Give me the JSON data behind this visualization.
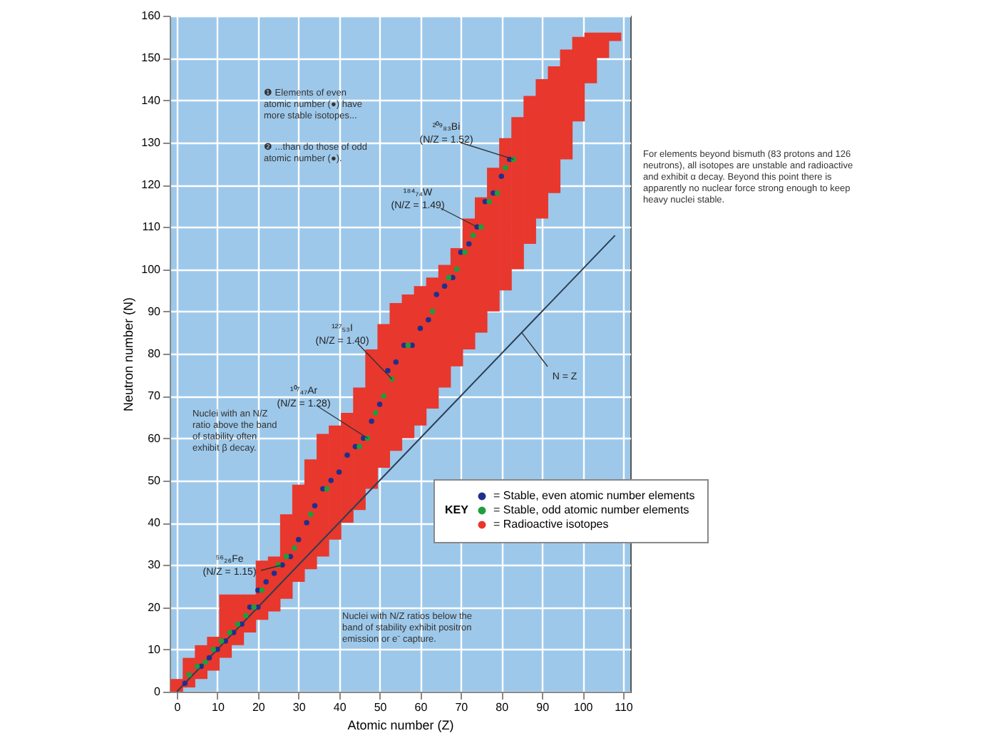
{
  "chart_data": {
    "type": "scatter",
    "xlabel": "Atomic number (Z)",
    "ylabel": "Neutron number (N)",
    "legend_title": "KEY",
    "xlim": [
      0,
      110
    ],
    "xticks": [
      0,
      10,
      20,
      30,
      40,
      50,
      60,
      70,
      80,
      90,
      100,
      110
    ],
    "ylim": [
      0,
      160
    ],
    "yticks": [
      0,
      10,
      20,
      30,
      40,
      50,
      60,
      70,
      80,
      90,
      100,
      110,
      120,
      130,
      140,
      150,
      160
    ],
    "grid": true,
    "legend": "bottom right",
    "marker": "circle",
    "series": [
      {
        "name": "= Stable, even atomic number elements",
        "color": "#1f2f8f",
        "x": [
          2,
          6,
          8,
          10,
          12,
          14,
          16,
          18,
          20,
          20,
          22,
          24,
          26,
          28,
          30,
          32,
          34,
          36,
          38,
          40,
          42,
          44,
          46,
          48,
          50,
          52,
          54,
          56,
          58,
          60,
          62,
          64,
          66,
          68,
          70,
          72,
          74,
          76,
          78,
          80,
          82
        ],
        "values": [
          2,
          6,
          8,
          10,
          12,
          14,
          16,
          20,
          20,
          24,
          26,
          28,
          30,
          32,
          36,
          40,
          44,
          48,
          50,
          52,
          56,
          58,
          60,
          64,
          68,
          76,
          78,
          82,
          82,
          86,
          88,
          94,
          96,
          98,
          104,
          106,
          110,
          116,
          118,
          122,
          126
        ]
      },
      {
        "name": "= Stable, odd atomic number elements",
        "color": "#1e9e3e",
        "x": [
          3,
          5,
          7,
          9,
          11,
          13,
          15,
          17,
          19,
          21,
          25,
          27,
          29,
          33,
          37,
          45,
          47,
          49,
          51,
          53,
          57,
          63,
          67,
          69,
          71,
          73,
          75,
          77,
          79,
          81,
          83
        ],
        "values": [
          4,
          6,
          7,
          10,
          12,
          14,
          16,
          18,
          20,
          24,
          30,
          32,
          34,
          42,
          48,
          58,
          60,
          66,
          70,
          74,
          82,
          90,
          98,
          100,
          104,
          108,
          110,
          116,
          118,
          124,
          126
        ]
      },
      {
        "name": "= Radioactive isotopes",
        "type": "bar",
        "marker": "none",
        "color": "#e8372c",
        "x": [
          0,
          3,
          6,
          9,
          12,
          15,
          18,
          21,
          24,
          27,
          30,
          33,
          36,
          39,
          42,
          45,
          48,
          51,
          54,
          57,
          60,
          63,
          66,
          69,
          72,
          75,
          78,
          81,
          84,
          87,
          90,
          93,
          96,
          99,
          102,
          105,
          108
        ],
        "base": [
          0,
          1,
          3,
          5,
          8,
          11,
          14,
          17,
          19,
          22,
          26,
          29,
          32,
          36,
          40,
          43,
          48,
          53,
          57,
          60,
          63,
          67,
          72,
          77,
          81,
          85,
          90,
          95,
          100,
          106,
          112,
          118,
          126,
          135,
          144,
          150,
          154
        ],
        "values": [
          3,
          7,
          8,
          8,
          15,
          12,
          9,
          14,
          13,
          20,
          23,
          26,
          29,
          27,
          26,
          29,
          33,
          34,
          35,
          34,
          33,
          31,
          29,
          28,
          31,
          32,
          34,
          36,
          36,
          35,
          33,
          30,
          26,
          20,
          12,
          6,
          2
        ]
      },
      {
        "type": "line",
        "marker": "none",
        "color": "#2a3f55",
        "x": [
          0,
          108
        ],
        "values": [
          0,
          108
        ]
      }
    ],
    "annotations": [
      "❶ Elements of even\natomic number (●) have\nmore stable isotopes...",
      "❷ ...than do those of odd\natomic number (●).",
      "For elements beyond bismuth (83 protons and 126\nneutrons), all isotopes are unstable and radioactive\nand exhibit α decay.  Beyond this point there is\napparently no nuclear force strong enough to keep\nheavy nuclei stable.",
      "Nuclei with an N/Z\nratio above the band\nof stability often\nexhibit β decay.",
      "Nuclei with N/Z ratios below the\nband of stability exhibit positron\nemission or e⁻ capture.",
      {
        "text": "⁵⁶₂₆Fe\n(N/Z = 1.15)",
        "x": 26,
        "y": 30
      },
      {
        "text": "¹⁰⁷₄₇Ar\n(N/Z = 1.28)",
        "x": 47,
        "y": 60
      },
      {
        "text": "¹²⁷₅₃I\n(N/Z = 1.40)",
        "x": 53,
        "y": 74
      },
      {
        "text": "¹⁸⁴₇₄W\n(N/Z = 1.49)",
        "x": 74,
        "y": 110
      },
      {
        "text": "²⁰⁹₈₃Bi\n(N/Z = 1.52)",
        "x": 83,
        "y": 126
      },
      {
        "text": "N = Z",
        "x": 85,
        "y": 85
      }
    ]
  }
}
